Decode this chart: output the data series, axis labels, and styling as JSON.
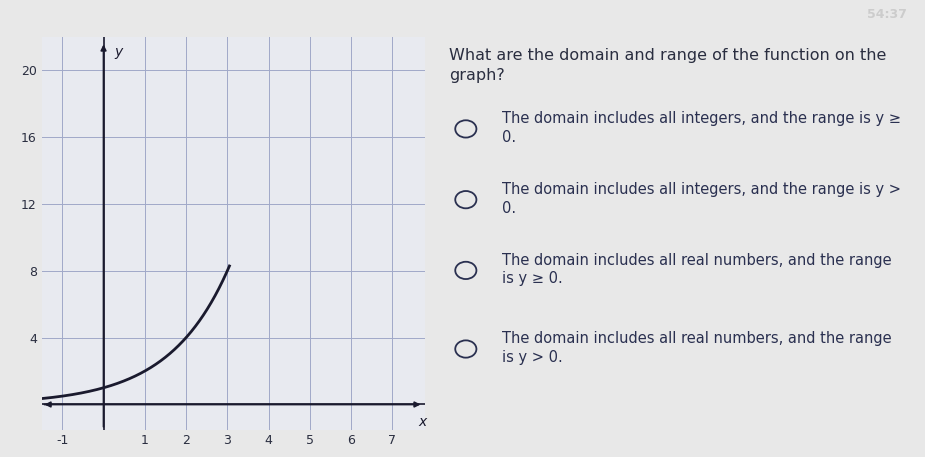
{
  "top_bar_color": "#2a1f1a",
  "bg_color": "#e8e8e8",
  "graph_area_color": "#e8eaf0",
  "grid_color": "#a0a8c8",
  "curve_color": "#1a1a2e",
  "axis_color": "#1a1a2e",
  "xlim": [
    -1.5,
    7.8
  ],
  "ylim": [
    -1.5,
    22
  ],
  "xticks": [
    -1,
    0,
    1,
    2,
    3,
    4,
    5,
    6,
    7
  ],
  "yticks": [
    0,
    4,
    8,
    12,
    16,
    20
  ],
  "xlabel": "x",
  "ylabel": "y",
  "question": "What are the domain and range of the function on the\ngraph?",
  "options": [
    "The domain includes all integers, and the range is y ≥\n0.",
    "The domain includes all integers, and the range is y >\n0.",
    "The domain includes all real numbers, and the range\nis y ≥ 0.",
    "The domain includes all real numbers, and the range\nis y > 0."
  ],
  "text_color": "#2a2e40",
  "option_color": "#2a3050",
  "question_fontsize": 11.5,
  "option_fontsize": 10.5,
  "curve_x_start": -1.5,
  "curve_x_end": 3.05,
  "timer_text": "54:37",
  "timer_color": "#cc2222"
}
